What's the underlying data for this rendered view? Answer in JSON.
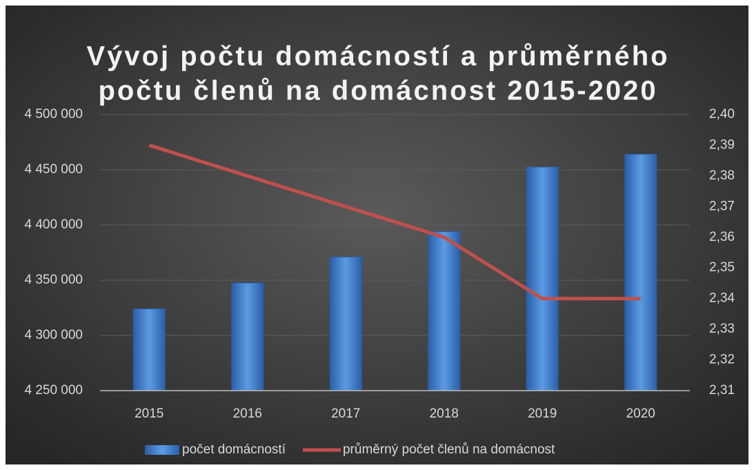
{
  "chart_data": {
    "type": "bar",
    "title": [
      "Vývoj počtu domácností a průměrného",
      "počtu členů na domácnost 2015-2020"
    ],
    "categories": [
      "2015",
      "2016",
      "2017",
      "2018",
      "2019",
      "2020"
    ],
    "series": [
      {
        "name": "počet domácností",
        "type": "bar",
        "color": "#4a86d4",
        "axis": "y",
        "values": [
          4324000,
          4347500,
          4371000,
          4394000,
          4452500,
          4464000
        ]
      },
      {
        "name": "průměrný počet členů na domácnost",
        "type": "line",
        "color": "#c0504d",
        "axis": "y2",
        "values": [
          2.39,
          2.38,
          2.37,
          2.36,
          2.34,
          2.34
        ]
      }
    ],
    "ylim": [
      4250000,
      4500000
    ],
    "yticks": [
      {
        "value": 4250000,
        "label": "4 250 000"
      },
      {
        "value": 4300000,
        "label": "4 300 000"
      },
      {
        "value": 4350000,
        "label": "4 350 000"
      },
      {
        "value": 4400000,
        "label": "4 400 000"
      },
      {
        "value": 4450000,
        "label": "4 450 000"
      },
      {
        "value": 4500000,
        "label": "4 500 000"
      }
    ],
    "y2lim": [
      2.31,
      2.4
    ],
    "y2ticks": [
      {
        "value": 2.31,
        "label": "2,31"
      },
      {
        "value": 2.32,
        "label": "2,32"
      },
      {
        "value": 2.33,
        "label": "2,33"
      },
      {
        "value": 2.34,
        "label": "2,34"
      },
      {
        "value": 2.35,
        "label": "2,35"
      },
      {
        "value": 2.36,
        "label": "2,36"
      },
      {
        "value": 2.37,
        "label": "2,37"
      },
      {
        "value": 2.38,
        "label": "2,38"
      },
      {
        "value": 2.39,
        "label": "2,39"
      },
      {
        "value": 2.4,
        "label": "2,40"
      }
    ],
    "grid": true,
    "legend": "bottom"
  }
}
